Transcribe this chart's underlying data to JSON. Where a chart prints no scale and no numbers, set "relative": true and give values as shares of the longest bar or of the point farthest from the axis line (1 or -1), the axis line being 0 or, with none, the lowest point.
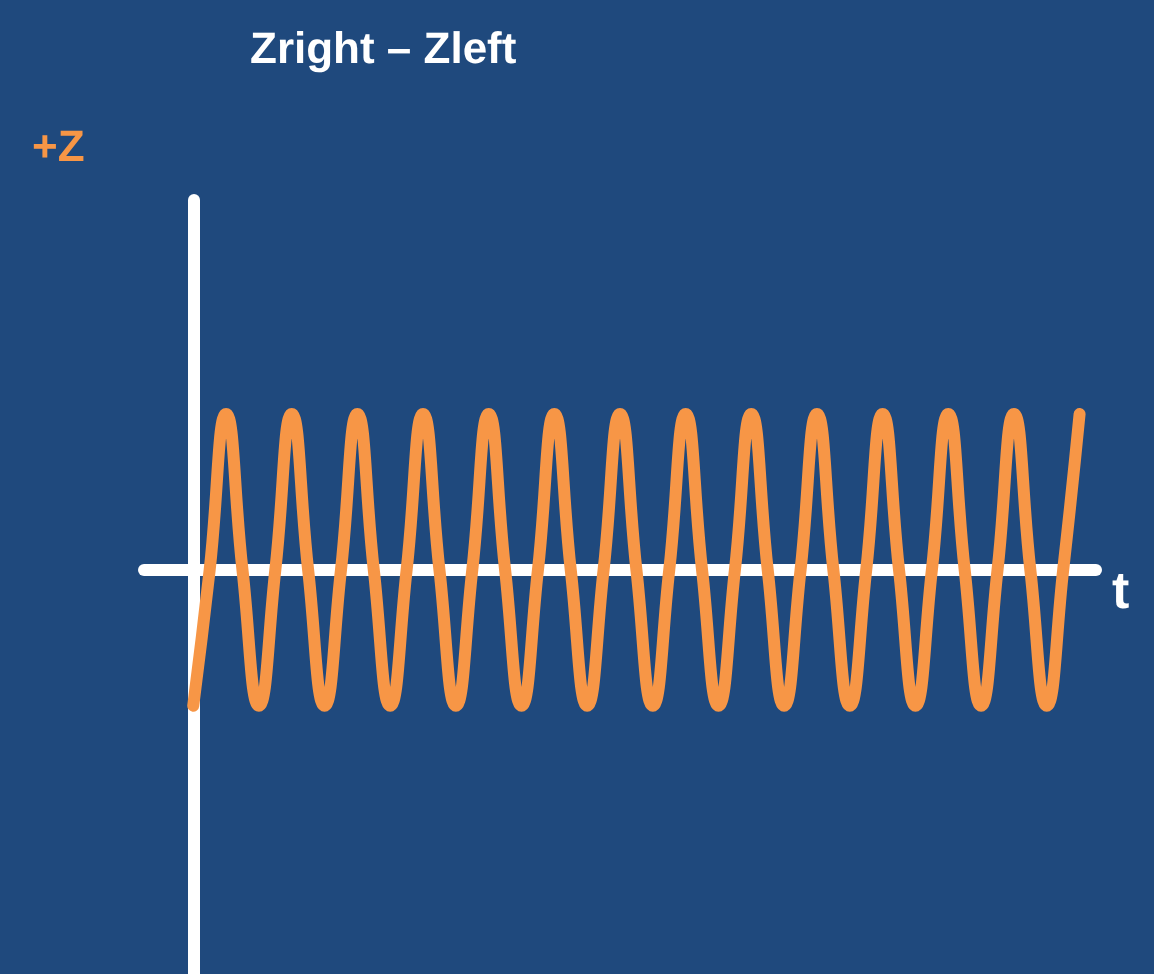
{
  "chart_data": {
    "type": "line",
    "title": "Zright – Zleft",
    "xlabel": "t",
    "annotations": [
      "+Z"
    ],
    "relative": true,
    "color": "#f79646",
    "categories": [
      null,
      null,
      null,
      null,
      null,
      null,
      null,
      null,
      null,
      null,
      null,
      null,
      null,
      null,
      null,
      null,
      null,
      null,
      null,
      null,
      null,
      null,
      null,
      null,
      null,
      null,
      null,
      null,
      null,
      null,
      null,
      null,
      null,
      null,
      null,
      null,
      null,
      null,
      null,
      null,
      null,
      null,
      null,
      null,
      null,
      null,
      null,
      null,
      null,
      null,
      null,
      null,
      null,
      null,
      null
    ],
    "values": [
      -0.87,
      0,
      1,
      0,
      -0.87,
      0,
      1,
      0,
      -0.87,
      0,
      1,
      0,
      -0.87,
      0,
      1,
      0,
      -0.87,
      0,
      1,
      0,
      -0.87,
      0,
      1,
      0,
      -0.87,
      0,
      1,
      0,
      -0.87,
      0,
      1,
      0,
      -0.87,
      0,
      1,
      0,
      -0.87,
      0,
      1,
      0,
      -0.87,
      0,
      1,
      0,
      -0.87,
      0,
      1,
      0,
      -0.87,
      0,
      1,
      0,
      -0.87,
      0,
      1
    ]
  }
}
